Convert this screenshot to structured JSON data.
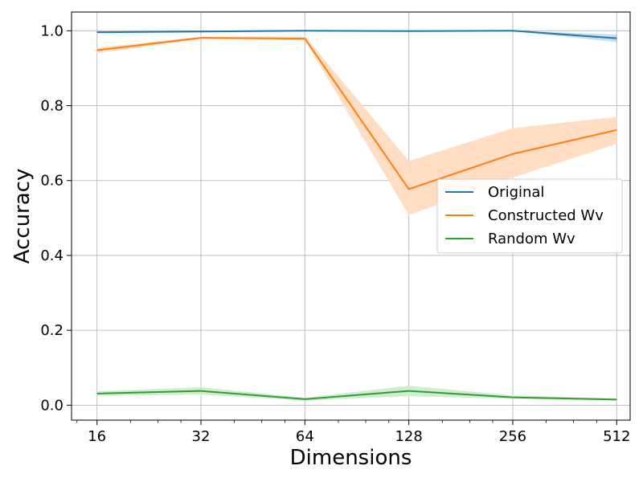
{
  "chart_data": {
    "type": "line",
    "title": "",
    "xlabel": "Dimensions",
    "ylabel": "Accuracy",
    "x_scale": "log2",
    "x": [
      16,
      32,
      64,
      128,
      256,
      512
    ],
    "x_tick_labels": [
      "16",
      "32",
      "64",
      "128",
      "256",
      "512"
    ],
    "y_ticks": [
      0.0,
      0.2,
      0.4,
      0.6,
      0.8,
      1.0
    ],
    "y_tick_labels": [
      "0.0",
      "0.2",
      "0.4",
      "0.6",
      "0.8",
      "1.0"
    ],
    "ylim": [
      -0.04,
      1.05
    ],
    "xlim": [
      13.5,
      560
    ],
    "grid": true,
    "legend_position": "center-right",
    "series": [
      {
        "name": "Original",
        "color": "#1f77b4",
        "values": [
          0.996,
          0.998,
          1.0,
          0.999,
          1.0,
          0.98
        ],
        "lower": [
          0.994,
          0.996,
          0.999,
          0.998,
          0.999,
          0.97
        ],
        "upper": [
          0.998,
          0.999,
          1.0,
          1.0,
          1.0,
          0.99
        ]
      },
      {
        "name": "Constructed Wv",
        "color": "#ff7f0e",
        "band_color": "#ffdcc2",
        "values": [
          0.948,
          0.981,
          0.979,
          0.577,
          0.671,
          0.735
        ],
        "lower": [
          0.94,
          0.978,
          0.975,
          0.508,
          0.608,
          0.698
        ],
        "upper": [
          0.955,
          0.984,
          0.985,
          0.652,
          0.74,
          0.77
        ]
      },
      {
        "name": "Random Wv",
        "color": "#2ca02c",
        "band_color": "#d2ecd2",
        "values": [
          0.031,
          0.038,
          0.016,
          0.038,
          0.021,
          0.015
        ],
        "lower": [
          0.025,
          0.028,
          0.012,
          0.024,
          0.017,
          0.012
        ],
        "upper": [
          0.037,
          0.048,
          0.02,
          0.052,
          0.026,
          0.018
        ]
      }
    ]
  }
}
